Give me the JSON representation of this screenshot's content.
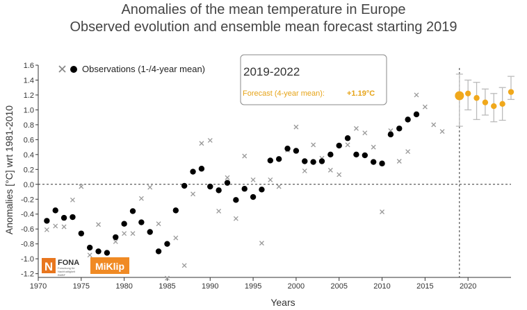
{
  "header": {
    "title": "Anomalies of the mean temperature in Europe",
    "subtitle": "Observed evolution and ensemble mean forecast starting 2019"
  },
  "legend": {
    "observations_label": "Observations (1-/4-year mean)"
  },
  "info_box": {
    "period": "2019-2022",
    "forecast_label": "Forecast (4-year mean):",
    "forecast_value": "+1.19°C"
  },
  "logos": {
    "fona_text": "FONA",
    "fona_small_1": "Forschung für",
    "fona_small_2": "Nachhaltigkeit",
    "fona_small_3": "BMBF",
    "miklip_text": "MiKlip"
  },
  "colors": {
    "observation_dots": "#000000",
    "observation_crosses": "#999999",
    "forecast": "#f0a81c",
    "error_bars": "#bbbbbb",
    "fona_orange": "#e8761e",
    "miklip_orange": "#f08a24"
  },
  "chart_data": {
    "type": "scatter",
    "title": "Anomalies of the mean temperature in Europe",
    "xlabel": "Years",
    "ylabel": "Anomalies [°C] wrt 1981-2010",
    "xlim": [
      1970,
      2025
    ],
    "ylim": [
      -1.25,
      1.6
    ],
    "x_ticks": [
      1970,
      1975,
      1980,
      1985,
      1990,
      1995,
      2000,
      2005,
      2010,
      2015,
      2020
    ],
    "y_ticks": [
      -1.2,
      -1.0,
      -0.8,
      -0.6,
      -0.4,
      -0.2,
      0.0,
      0.2,
      0.4,
      0.6,
      0.8,
      1.0,
      1.2,
      1.4,
      1.6
    ],
    "reference_line_y": 0.0,
    "forecast_start_x": 2019,
    "series": [
      {
        "name": "Observations (1-year mean)",
        "marker": "cross",
        "points": [
          [
            1971,
            -0.61
          ],
          [
            1972,
            -0.56
          ],
          [
            1973,
            -0.57
          ],
          [
            1974,
            -0.21
          ],
          [
            1975,
            -0.03
          ],
          [
            1976,
            -0.95
          ],
          [
            1977,
            -0.54
          ],
          [
            1978,
            -1.09
          ],
          [
            1979,
            -0.77
          ],
          [
            1980,
            -0.66
          ],
          [
            1981,
            -0.66
          ],
          [
            1982,
            -0.19
          ],
          [
            1983,
            -0.04
          ],
          [
            1984,
            -0.53
          ],
          [
            1985,
            -1.26
          ],
          [
            1986,
            -0.72
          ],
          [
            1987,
            -1.09
          ],
          [
            1988,
            -0.13
          ],
          [
            1989,
            0.55
          ],
          [
            1990,
            0.59
          ],
          [
            1991,
            -0.36
          ],
          [
            1992,
            0.09
          ],
          [
            1993,
            -0.46
          ],
          [
            1994,
            0.38
          ],
          [
            1995,
            0.06
          ],
          [
            1996,
            -0.79
          ],
          [
            1997,
            0.06
          ],
          [
            1998,
            -0.03
          ],
          [
            1999,
            0.46
          ],
          [
            2000,
            0.77
          ],
          [
            2001,
            0.18
          ],
          [
            2002,
            0.53
          ],
          [
            2003,
            0.35
          ],
          [
            2004,
            0.19
          ],
          [
            2005,
            0.13
          ],
          [
            2006,
            0.53
          ],
          [
            2007,
            0.75
          ],
          [
            2008,
            0.69
          ],
          [
            2009,
            0.5
          ],
          [
            2010,
            -0.37
          ],
          [
            2011,
            0.72
          ],
          [
            2012,
            0.31
          ],
          [
            2013,
            0.44
          ],
          [
            2014,
            1.2
          ],
          [
            2015,
            1.04
          ],
          [
            2016,
            0.8
          ],
          [
            2017,
            0.71
          ]
        ]
      },
      {
        "name": "Observations (4-year mean)",
        "marker": "dot",
        "points": [
          [
            1971,
            -0.49
          ],
          [
            1972,
            -0.35
          ],
          [
            1973,
            -0.45
          ],
          [
            1974,
            -0.44
          ],
          [
            1975,
            -0.66
          ],
          [
            1976,
            -0.85
          ],
          [
            1977,
            -0.9
          ],
          [
            1978,
            -0.92
          ],
          [
            1979,
            -0.71
          ],
          [
            1980,
            -0.53
          ],
          [
            1981,
            -0.36
          ],
          [
            1982,
            -0.51
          ],
          [
            1983,
            -0.64
          ],
          [
            1984,
            -0.9
          ],
          [
            1985,
            -0.8
          ],
          [
            1986,
            -0.35
          ],
          [
            1987,
            -0.02
          ],
          [
            1988,
            0.17
          ],
          [
            1989,
            0.21
          ],
          [
            1990,
            -0.03
          ],
          [
            1991,
            -0.08
          ],
          [
            1992,
            0.02
          ],
          [
            1993,
            -0.21
          ],
          [
            1994,
            -0.06
          ],
          [
            1995,
            -0.17
          ],
          [
            1996,
            -0.07
          ],
          [
            1997,
            0.32
          ],
          [
            1998,
            0.34
          ],
          [
            1999,
            0.48
          ],
          [
            2000,
            0.45
          ],
          [
            2001,
            0.31
          ],
          [
            2002,
            0.3
          ],
          [
            2003,
            0.31
          ],
          [
            2004,
            0.4
          ],
          [
            2005,
            0.52
          ],
          [
            2006,
            0.62
          ],
          [
            2007,
            0.4
          ],
          [
            2008,
            0.39
          ],
          [
            2009,
            0.3
          ],
          [
            2010,
            0.28
          ],
          [
            2011,
            0.67
          ],
          [
            2012,
            0.75
          ],
          [
            2013,
            0.87
          ],
          [
            2014,
            0.94
          ]
        ]
      },
      {
        "name": "Forecast (4-year mean)",
        "marker": "dot-orange",
        "points": [
          [
            2019,
            1.19,
            0.78,
            1.48
          ],
          [
            2020,
            1.22,
            1.0,
            1.4
          ],
          [
            2021,
            1.16,
            0.87,
            1.37
          ],
          [
            2022,
            1.1,
            0.93,
            1.28
          ],
          [
            2023,
            1.05,
            0.84,
            1.22
          ],
          [
            2024,
            1.08,
            0.86,
            1.3
          ],
          [
            2025,
            1.24,
            1.14,
            1.45
          ]
        ]
      }
    ]
  }
}
